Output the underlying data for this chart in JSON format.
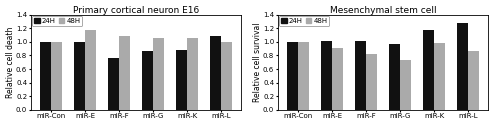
{
  "left_title": "Primary cortical neuron E16",
  "right_title": "Mesenchymal stem cell",
  "left_ylabel": "Relative cell death",
  "right_ylabel": "Relative cell survival",
  "categories": [
    "miR-Con",
    "miR-E",
    "miR-F",
    "miR-G",
    "miR-K",
    "miR-L"
  ],
  "left_24h": [
    1.0,
    1.0,
    0.77,
    0.86,
    0.88,
    1.08
  ],
  "left_48h": [
    1.0,
    1.17,
    1.09,
    1.06,
    1.05,
    1.0
  ],
  "right_24h": [
    1.0,
    1.01,
    1.01,
    0.97,
    1.18,
    1.27
  ],
  "right_48h": [
    1.0,
    0.91,
    0.82,
    0.74,
    0.99,
    0.87
  ],
  "color_24h": "#111111",
  "color_48h": "#aaaaaa",
  "ylim": [
    0,
    1.4
  ],
  "yticks": [
    0,
    0.2,
    0.4,
    0.6,
    0.8,
    1.0,
    1.2,
    1.4
  ],
  "legend_24h": "24H",
  "legend_48h": "48H",
  "title_fontsize": 6.5,
  "axis_fontsize": 5.5,
  "tick_fontsize": 5.0,
  "legend_fontsize": 5.0,
  "bar_width": 0.32
}
